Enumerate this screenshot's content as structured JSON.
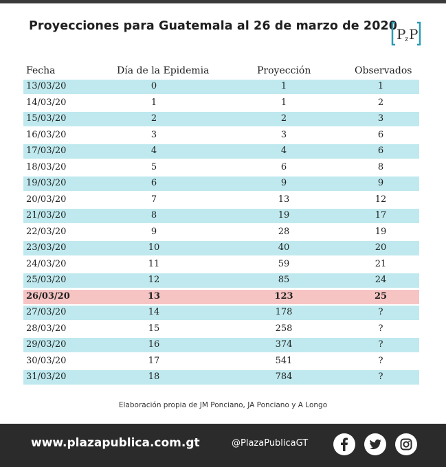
{
  "title": "Proyecciones para Guatemala al 26 de marzo de 2020",
  "logo_text": "PzP",
  "chart_data": {
    "type": "table",
    "columns": [
      "Fecha",
      "Día de la Epidemia",
      "Proyección",
      "Observados"
    ],
    "rows": [
      {
        "fecha": "13/03/20",
        "dia": "0",
        "proyeccion": "1",
        "observados": "1"
      },
      {
        "fecha": "14/03/20",
        "dia": "1",
        "proyeccion": "1",
        "observados": "2"
      },
      {
        "fecha": "15/03/20",
        "dia": "2",
        "proyeccion": "2",
        "observados": "3"
      },
      {
        "fecha": "16/03/20",
        "dia": "3",
        "proyeccion": "3",
        "observados": "6"
      },
      {
        "fecha": "17/03/20",
        "dia": "4",
        "proyeccion": "4",
        "observados": "6"
      },
      {
        "fecha": "18/03/20",
        "dia": "5",
        "proyeccion": "6",
        "observados": "8"
      },
      {
        "fecha": "19/03/20",
        "dia": "6",
        "proyeccion": "9",
        "observados": "9"
      },
      {
        "fecha": "20/03/20",
        "dia": "7",
        "proyeccion": "13",
        "observados": "12"
      },
      {
        "fecha": "21/03/20",
        "dia": "8",
        "proyeccion": "19",
        "observados": "17"
      },
      {
        "fecha": "22/03/20",
        "dia": "9",
        "proyeccion": "28",
        "observados": "19"
      },
      {
        "fecha": "23/03/20",
        "dia": "10",
        "proyeccion": "40",
        "observados": "20"
      },
      {
        "fecha": "24/03/20",
        "dia": "11",
        "proyeccion": "59",
        "observados": "21"
      },
      {
        "fecha": "25/03/20",
        "dia": "12",
        "proyeccion": "85",
        "observados": "24"
      },
      {
        "fecha": "26/03/20",
        "dia": "13",
        "proyeccion": "123",
        "observados": "25",
        "highlight": true
      },
      {
        "fecha": "27/03/20",
        "dia": "14",
        "proyeccion": "178",
        "observados": "?"
      },
      {
        "fecha": "28/03/20",
        "dia": "15",
        "proyeccion": "258",
        "observados": "?"
      },
      {
        "fecha": "29/03/20",
        "dia": "16",
        "proyeccion": "374",
        "observados": "?"
      },
      {
        "fecha": "30/03/20",
        "dia": "17",
        "proyeccion": "541",
        "observados": "?"
      },
      {
        "fecha": "31/03/20",
        "dia": "18",
        "proyeccion": "784",
        "observados": "?"
      }
    ]
  },
  "credit": "Elaboración propia de JM Ponciano, JA Ponciano y A Longo",
  "footer": {
    "url": "www.plazapublica.com.gt",
    "handle": "@PlazaPublicaGT",
    "social_icons": [
      "facebook-icon",
      "twitter-icon",
      "instagram-icon"
    ]
  },
  "colors": {
    "row_shade": "#bfe9ee",
    "row_highlight": "#f6c4c3",
    "footer_bg": "#2b2b2b",
    "logo_accent": "#2b9ab5"
  }
}
